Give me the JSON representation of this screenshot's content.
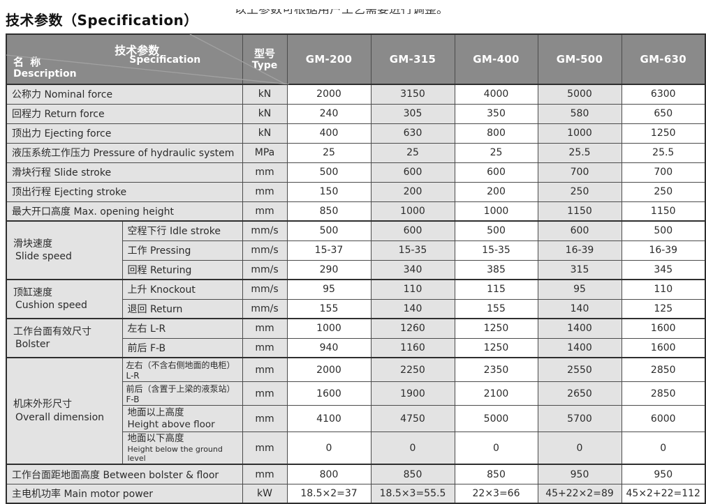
{
  "page": {
    "clipped_top_text": "以上参数可根据用户工艺需要进行调整。",
    "title": "技术参数（Specification）"
  },
  "colors": {
    "header_bg": "#8a8a8a",
    "header_text": "#ffffff",
    "cell_bg_light": "#e3e3e3",
    "cell_bg_white": "#ffffff",
    "border": "#4b4b4b",
    "text": "#2b2b2b"
  },
  "table": {
    "header": {
      "spec_cn": "技术参数",
      "spec_en": "Specification",
      "name_cn": "名 称",
      "name_en": "Description",
      "type_cn": "型号",
      "type_en": "Type",
      "models": [
        "GM-200",
        "GM-315",
        "GM-400",
        "GM-500",
        "GM-630"
      ]
    },
    "rows": [
      {
        "label": "公称力  Nominal force",
        "unit": "kN",
        "values": [
          "2000",
          "3150",
          "4000",
          "5000",
          "6300"
        ]
      },
      {
        "label": "回程力  Return force",
        "unit": "kN",
        "values": [
          "240",
          "305",
          "350",
          "580",
          "650"
        ]
      },
      {
        "label": "顶出力  Ejecting force",
        "unit": "kN",
        "values": [
          "400",
          "630",
          "800",
          "1000",
          "1250"
        ]
      },
      {
        "label": "液压系统工作压力 Pressure of hydraulic system",
        "unit": "MPa",
        "values": [
          "25",
          "25",
          "25",
          "25.5",
          "25.5"
        ]
      },
      {
        "label": "滑块行程  Slide stroke",
        "unit": "mm",
        "values": [
          "500",
          "600",
          "600",
          "700",
          "700"
        ]
      },
      {
        "label": "顶出行程  Ejecting stroke",
        "unit": "mm",
        "values": [
          "150",
          "200",
          "200",
          "250",
          "250"
        ]
      },
      {
        "label": "最大开口高度  Max. opening height",
        "unit": "mm",
        "values": [
          "850",
          "1000",
          "1000",
          "1150",
          "1150"
        ]
      },
      {
        "group": {
          "cn": "滑块速度",
          "en": "Slide speed",
          "span": 3
        },
        "thick": true,
        "label": "空程下行 Idle stroke",
        "unit": "mm/s",
        "values": [
          "500",
          "600",
          "500",
          "600",
          "500"
        ]
      },
      {
        "in_group": true,
        "label": "工作 Pressing",
        "unit": "mm/s",
        "values": [
          "15-37",
          "15-35",
          "15-35",
          "16-39",
          "16-39"
        ]
      },
      {
        "in_group": true,
        "label": "回程 Returing",
        "unit": "mm/s",
        "values": [
          "290",
          "340",
          "385",
          "315",
          "345"
        ]
      },
      {
        "group": {
          "cn": "顶缸速度",
          "en": "Cushion speed",
          "span": 2
        },
        "thick": true,
        "label": "上升 Knockout",
        "unit": "mm/s",
        "values": [
          "95",
          "110",
          "115",
          "95",
          "110"
        ]
      },
      {
        "in_group": true,
        "label": "退回 Return",
        "unit": "mm/s",
        "values": [
          "155",
          "140",
          "155",
          "140",
          "125"
        ]
      },
      {
        "group": {
          "cn": "工作台面有效尺寸",
          "en": "Bolster",
          "span": 2
        },
        "thick": true,
        "label": "左右 L-R",
        "unit": "mm",
        "values": [
          "1000",
          "1260",
          "1250",
          "1400",
          "1600"
        ]
      },
      {
        "in_group": true,
        "label": "前后 F-B",
        "unit": "mm",
        "values": [
          "940",
          "1160",
          "1250",
          "1400",
          "1600"
        ]
      },
      {
        "group": {
          "cn": "机床外形尺寸",
          "en": "Overall dimension",
          "span": 4
        },
        "thick": true,
        "label": "左右（不含右侧地面的电柜）L-R",
        "small": true,
        "unit": "mm",
        "values": [
          "2000",
          "2250",
          "2350",
          "2550",
          "2850"
        ]
      },
      {
        "in_group": true,
        "label": "前后（含置于上梁的液泵站）F-B",
        "small": true,
        "unit": "mm",
        "values": [
          "1600",
          "1900",
          "2100",
          "2650",
          "2850"
        ]
      },
      {
        "in_group": true,
        "tall": true,
        "label_cn": "地面以上高度",
        "label_en": "Height above floor",
        "unit": "mm",
        "values": [
          "4100",
          "4750",
          "5000",
          "5700",
          "6000"
        ]
      },
      {
        "in_group": true,
        "tall": true,
        "en_small": true,
        "label_cn": "地面以下高度",
        "label_en": "Height below the ground level",
        "unit": "mm",
        "values": [
          "0",
          "0",
          "0",
          "0",
          "0"
        ]
      },
      {
        "thick": true,
        "label": "工作台面距地面高度 Between bolster & floor",
        "unit": "mm",
        "values": [
          "800",
          "850",
          "850",
          "950",
          "950"
        ]
      },
      {
        "label": "主电机功率 Main motor power",
        "unit": "kW",
        "values": [
          "18.5×2=37",
          "18.5×3=55.5",
          "22×3=66",
          "45+22×2=89",
          "45×2+22=112"
        ]
      }
    ]
  }
}
